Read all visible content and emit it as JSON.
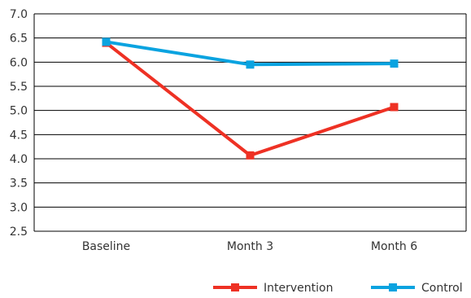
{
  "chart_data": {
    "type": "line",
    "categories": [
      "Baseline",
      "Month 3",
      "Month 6"
    ],
    "series": [
      {
        "name": "Intervention",
        "values": [
          6.4,
          4.07,
          5.07
        ],
        "color": "#ee3124"
      },
      {
        "name": "Control",
        "values": [
          6.42,
          5.95,
          5.97
        ],
        "color": "#0aa3e0"
      }
    ],
    "ylim": [
      2.5,
      7.0
    ],
    "yticks": [
      "7.0",
      "6.5",
      "6.0",
      "5.5",
      "5.0",
      "4.5",
      "4.0",
      "3.5",
      "3.0",
      "2.5"
    ],
    "grid": true,
    "legend": "bottom-right",
    "title": "",
    "xlabel": "",
    "ylabel": ""
  }
}
